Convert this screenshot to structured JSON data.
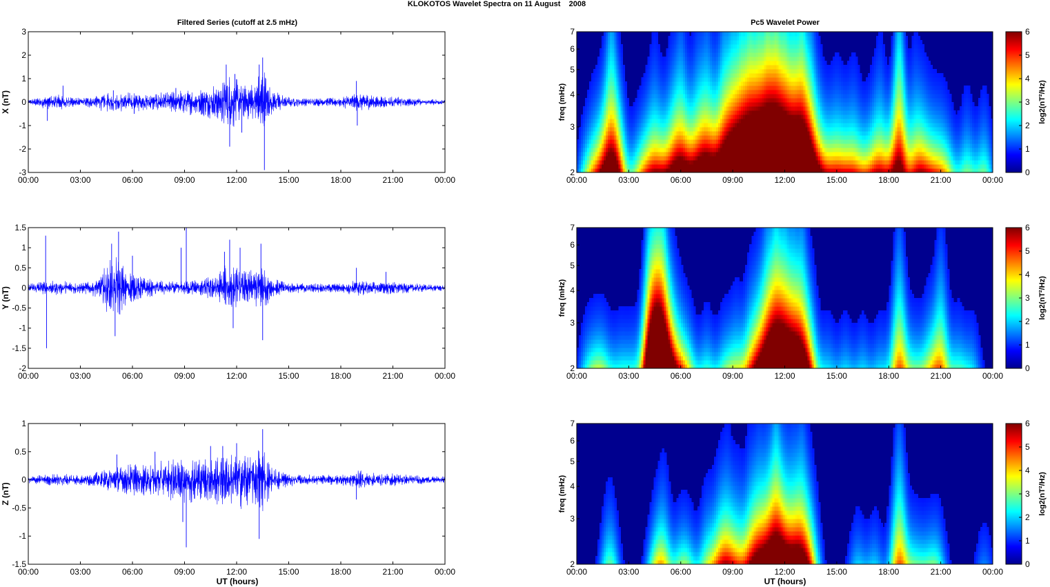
{
  "figure": {
    "title": "KLOKOTOS Wavelet Spectra on 11 August    2008",
    "left_title": "Filtered Series (cutoff at 2.5 mHz)",
    "right_title": "Pc5 Wavelet Power",
    "xlabel": "UT (hours)"
  },
  "chart_data": [
    {
      "type": "line",
      "panel": "X",
      "ylabel": "X (nT)",
      "xlim_hours": [
        0,
        24
      ],
      "ylim": [
        -3,
        3
      ],
      "x_ticks": [
        "00:00",
        "03:00",
        "06:00",
        "09:00",
        "12:00",
        "15:00",
        "18:00",
        "21:00",
        "00:00"
      ],
      "y_ticks": [
        "-3",
        "-2",
        "-1",
        "0",
        "1",
        "2",
        "3"
      ],
      "y_tick_values": [
        -3,
        -2,
        -1,
        0,
        1,
        2,
        3
      ],
      "color": "#0000ff",
      "envelope": [
        [
          0,
          0.08
        ],
        [
          1,
          0.25
        ],
        [
          2,
          0.3
        ],
        [
          2.5,
          0.2
        ],
        [
          3,
          0.15
        ],
        [
          4,
          0.3
        ],
        [
          5,
          0.4
        ],
        [
          6,
          0.35
        ],
        [
          7,
          0.3
        ],
        [
          8,
          0.4
        ],
        [
          9,
          0.45
        ],
        [
          10,
          0.5
        ],
        [
          11,
          0.7
        ],
        [
          11.5,
          1.2
        ],
        [
          12,
          0.9
        ],
        [
          12.5,
          0.6
        ],
        [
          13,
          0.7
        ],
        [
          13.5,
          1.3
        ],
        [
          14,
          0.5
        ],
        [
          15,
          0.2
        ],
        [
          16,
          0.15
        ],
        [
          17,
          0.15
        ],
        [
          18,
          0.2
        ],
        [
          19,
          0.35
        ],
        [
          20,
          0.25
        ],
        [
          21,
          0.2
        ],
        [
          22,
          0.15
        ],
        [
          23,
          0.12
        ],
        [
          24,
          0.1
        ]
      ],
      "spikes": [
        [
          1.1,
          -0.8
        ],
        [
          2.0,
          0.7
        ],
        [
          4.9,
          0.5
        ],
        [
          6.1,
          -0.5
        ],
        [
          8.5,
          0.6
        ],
        [
          11.4,
          1.6
        ],
        [
          11.6,
          -1.9
        ],
        [
          11.9,
          1.2
        ],
        [
          12.3,
          -1.3
        ],
        [
          13.3,
          1.6
        ],
        [
          13.5,
          1.9
        ],
        [
          13.6,
          -2.9
        ],
        [
          18.9,
          0.9
        ],
        [
          18.95,
          -1.0
        ]
      ]
    },
    {
      "type": "line",
      "panel": "Y",
      "ylabel": "Y (nT)",
      "xlim_hours": [
        0,
        24
      ],
      "ylim": [
        -2,
        1.5
      ],
      "x_ticks": [
        "00:00",
        "03:00",
        "06:00",
        "09:00",
        "12:00",
        "15:00",
        "18:00",
        "21:00",
        "00:00"
      ],
      "y_ticks": [
        "-2",
        "-1.5",
        "-1",
        "-0.5",
        "0",
        "0.5",
        "1",
        "1.5"
      ],
      "y_tick_values": [
        -2,
        -1.5,
        -1,
        -0.5,
        0,
        0.5,
        1,
        1.5
      ],
      "color": "#0000ff",
      "envelope": [
        [
          0,
          0.1
        ],
        [
          1,
          0.15
        ],
        [
          2,
          0.15
        ],
        [
          3,
          0.12
        ],
        [
          4,
          0.2
        ],
        [
          4.5,
          0.5
        ],
        [
          5,
          0.7
        ],
        [
          5.5,
          0.5
        ],
        [
          6,
          0.3
        ],
        [
          7,
          0.2
        ],
        [
          8,
          0.15
        ],
        [
          9,
          0.15
        ],
        [
          10,
          0.2
        ],
        [
          11,
          0.35
        ],
        [
          11.5,
          0.6
        ],
        [
          12,
          0.45
        ],
        [
          12.5,
          0.35
        ],
        [
          13,
          0.4
        ],
        [
          13.5,
          0.55
        ],
        [
          14,
          0.2
        ],
        [
          15,
          0.12
        ],
        [
          16,
          0.1
        ],
        [
          17,
          0.1
        ],
        [
          18,
          0.1
        ],
        [
          19,
          0.18
        ],
        [
          20,
          0.12
        ],
        [
          21,
          0.15
        ],
        [
          22,
          0.1
        ],
        [
          23,
          0.08
        ],
        [
          24,
          0.06
        ]
      ],
      "spikes": [
        [
          1.0,
          1.3
        ],
        [
          1.05,
          -1.5
        ],
        [
          4.8,
          1.1
        ],
        [
          5.0,
          -1.2
        ],
        [
          5.2,
          1.4
        ],
        [
          6.0,
          0.8
        ],
        [
          8.8,
          1.0
        ],
        [
          9.1,
          1.5
        ],
        [
          11.3,
          0.9
        ],
        [
          11.6,
          1.2
        ],
        [
          11.8,
          -1.0
        ],
        [
          12.2,
          1.0
        ],
        [
          13.4,
          1.1
        ],
        [
          13.5,
          -1.3
        ],
        [
          18.9,
          0.5
        ],
        [
          20.6,
          0.4
        ]
      ]
    },
    {
      "type": "line",
      "panel": "Z",
      "ylabel": "Z (nT)",
      "xlim_hours": [
        0,
        24
      ],
      "ylim": [
        -1.5,
        1
      ],
      "x_ticks": [
        "00:00",
        "03:00",
        "06:00",
        "09:00",
        "12:00",
        "15:00",
        "18:00",
        "21:00",
        "00:00"
      ],
      "y_ticks": [
        "-1.5",
        "-1",
        "-0.5",
        "0",
        "0.5",
        "1"
      ],
      "y_tick_values": [
        -1.5,
        -1,
        -0.5,
        0,
        0.5,
        1
      ],
      "color": "#0000ff",
      "envelope": [
        [
          0,
          0.05
        ],
        [
          1,
          0.08
        ],
        [
          2,
          0.1
        ],
        [
          3,
          0.08
        ],
        [
          4,
          0.12
        ],
        [
          5,
          0.2
        ],
        [
          6,
          0.25
        ],
        [
          7,
          0.25
        ],
        [
          8,
          0.3
        ],
        [
          9,
          0.35
        ],
        [
          10,
          0.35
        ],
        [
          11,
          0.4
        ],
        [
          12,
          0.45
        ],
        [
          13,
          0.4
        ],
        [
          13.5,
          0.55
        ],
        [
          14,
          0.2
        ],
        [
          15,
          0.1
        ],
        [
          16,
          0.08
        ],
        [
          17,
          0.08
        ],
        [
          18,
          0.08
        ],
        [
          19,
          0.15
        ],
        [
          20,
          0.1
        ],
        [
          21,
          0.1
        ],
        [
          22,
          0.08
        ],
        [
          23,
          0.06
        ],
        [
          24,
          0.05
        ]
      ],
      "spikes": [
        [
          5.1,
          0.45
        ],
        [
          7.3,
          0.5
        ],
        [
          8.9,
          -0.75
        ],
        [
          9.1,
          -1.2
        ],
        [
          10.5,
          0.6
        ],
        [
          11.2,
          0.6
        ],
        [
          12.0,
          0.65
        ],
        [
          13.3,
          -1.05
        ],
        [
          13.5,
          0.9
        ],
        [
          18.9,
          -0.35
        ]
      ]
    },
    {
      "type": "heatmap",
      "panel": "X",
      "ylabel": "freq (mHz)",
      "xlim_hours": [
        0,
        24
      ],
      "ylim_mHz": [
        2,
        7
      ],
      "yscale": "log",
      "x_ticks": [
        "00:00",
        "03:00",
        "06:00",
        "09:00",
        "12:00",
        "15:00",
        "18:00",
        "21:00",
        "00:00"
      ],
      "y_ticks": [
        "2",
        "3",
        "4",
        "5",
        "6",
        "7"
      ],
      "y_tick_values": [
        2,
        3,
        4,
        5,
        6,
        7
      ],
      "colorbar_label": "log2(nT²/Hz)",
      "colorbar_ticks": [
        "0",
        "1",
        "2",
        "3",
        "4",
        "5",
        "6"
      ],
      "clim": [
        0,
        6
      ],
      "blobs": [
        [
          0.5,
          1.5
        ],
        [
          1.0,
          2.5
        ],
        [
          1.5,
          3.0
        ],
        [
          2.0,
          5.5
        ],
        [
          2.5,
          3.0
        ],
        [
          3.5,
          2.0
        ],
        [
          4.0,
          2.5
        ],
        [
          4.5,
          3.5
        ],
        [
          5.0,
          2.5
        ],
        [
          5.5,
          3.5
        ],
        [
          6.0,
          4.5
        ],
        [
          6.5,
          3.0
        ],
        [
          7.0,
          4.0
        ],
        [
          7.5,
          4.5
        ],
        [
          8.0,
          3.5
        ],
        [
          8.5,
          5.0
        ],
        [
          9.0,
          5.5
        ],
        [
          9.5,
          6.0
        ],
        [
          10.0,
          6.5
        ],
        [
          10.5,
          6.5
        ],
        [
          11.0,
          7.0
        ],
        [
          11.5,
          7.0
        ],
        [
          12.0,
          6.5
        ],
        [
          12.5,
          6.0
        ],
        [
          13.0,
          6.5
        ],
        [
          13.5,
          5.0
        ],
        [
          14.0,
          3.0
        ],
        [
          14.5,
          2.5
        ],
        [
          15.0,
          3.0
        ],
        [
          15.5,
          2.5
        ],
        [
          16.0,
          3.0
        ],
        [
          16.5,
          2.0
        ],
        [
          17.0,
          2.5
        ],
        [
          17.5,
          3.5
        ],
        [
          18.0,
          2.0
        ],
        [
          18.6,
          6.0
        ],
        [
          19.5,
          3.5
        ],
        [
          20.0,
          3.0
        ],
        [
          20.5,
          2.5
        ],
        [
          21.0,
          2.5
        ],
        [
          21.5,
          2.0
        ],
        [
          22.5,
          2.5
        ],
        [
          23.5,
          2.5
        ]
      ]
    },
    {
      "type": "heatmap",
      "panel": "Y",
      "ylabel": "freq (mHz)",
      "xlim_hours": [
        0,
        24
      ],
      "ylim_mHz": [
        2,
        7
      ],
      "yscale": "log",
      "x_ticks": [
        "00:00",
        "03:00",
        "06:00",
        "09:00",
        "12:00",
        "15:00",
        "18:00",
        "21:00",
        "00:00"
      ],
      "y_ticks": [
        "2",
        "3",
        "4",
        "5",
        "6",
        "7"
      ],
      "y_tick_values": [
        2,
        3,
        4,
        5,
        6,
        7
      ],
      "colorbar_label": "log2(nT²/Hz)",
      "colorbar_ticks": [
        "0",
        "1",
        "2",
        "3",
        "4",
        "5",
        "6"
      ],
      "clim": [
        0,
        6
      ],
      "blobs": [
        [
          0.6,
          1.5
        ],
        [
          1.2,
          2.0
        ],
        [
          1.7,
          1.5
        ],
        [
          2.5,
          1.5
        ],
        [
          3.2,
          1.5
        ],
        [
          4.2,
          5.5
        ],
        [
          4.6,
          6.0
        ],
        [
          5.0,
          6.0
        ],
        [
          5.5,
          3.5
        ],
        [
          6.0,
          2.5
        ],
        [
          6.5,
          2.0
        ],
        [
          7.5,
          2.0
        ],
        [
          8.5,
          2.0
        ],
        [
          9.2,
          2.5
        ],
        [
          10.0,
          3.0
        ],
        [
          10.5,
          3.5
        ],
        [
          11.0,
          5.0
        ],
        [
          11.5,
          6.0
        ],
        [
          12.0,
          5.5
        ],
        [
          12.5,
          5.0
        ],
        [
          13.0,
          5.0
        ],
        [
          13.5,
          3.0
        ],
        [
          14.5,
          1.5
        ],
        [
          15.5,
          1.5
        ],
        [
          16.5,
          1.5
        ],
        [
          17.5,
          1.5
        ],
        [
          18.6,
          4.5
        ],
        [
          19.5,
          2.0
        ],
        [
          20.3,
          2.5
        ],
        [
          21.0,
          4.0
        ],
        [
          22.0,
          2.0
        ],
        [
          22.8,
          1.5
        ]
      ]
    },
    {
      "type": "heatmap",
      "panel": "Z",
      "ylabel": "freq (mHz)",
      "xlim_hours": [
        0,
        24
      ],
      "ylim_mHz": [
        2,
        7
      ],
      "yscale": "log",
      "x_ticks": [
        "00:00",
        "03:00",
        "06:00",
        "09:00",
        "12:00",
        "15:00",
        "18:00",
        "21:00",
        "00:00"
      ],
      "y_ticks": [
        "2",
        "3",
        "4",
        "5",
        "6",
        "7"
      ],
      "y_tick_values": [
        2,
        3,
        4,
        5,
        6,
        7
      ],
      "colorbar_label": "log2(nT²/Hz)",
      "colorbar_ticks": [
        "0",
        "1",
        "2",
        "3",
        "4",
        "5",
        "6"
      ],
      "clim": [
        0,
        6
      ],
      "blobs": [
        [
          1.9,
          2.5
        ],
        [
          4.5,
          2.0
        ],
        [
          5.0,
          3.0
        ],
        [
          6.0,
          2.0
        ],
        [
          6.5,
          1.5
        ],
        [
          7.5,
          2.5
        ],
        [
          8.2,
          3.0
        ],
        [
          8.7,
          3.5
        ],
        [
          9.3,
          3.0
        ],
        [
          10.0,
          3.5
        ],
        [
          10.5,
          4.0
        ],
        [
          11.0,
          4.0
        ],
        [
          11.5,
          5.5
        ],
        [
          12.0,
          4.0
        ],
        [
          12.5,
          4.0
        ],
        [
          13.0,
          4.5
        ],
        [
          13.5,
          3.0
        ],
        [
          16.2,
          1.5
        ],
        [
          17.2,
          1.5
        ],
        [
          18.6,
          4.5
        ],
        [
          19.5,
          2.0
        ],
        [
          20.2,
          1.5
        ],
        [
          20.8,
          2.0
        ],
        [
          23.5,
          1.0
        ]
      ]
    }
  ]
}
